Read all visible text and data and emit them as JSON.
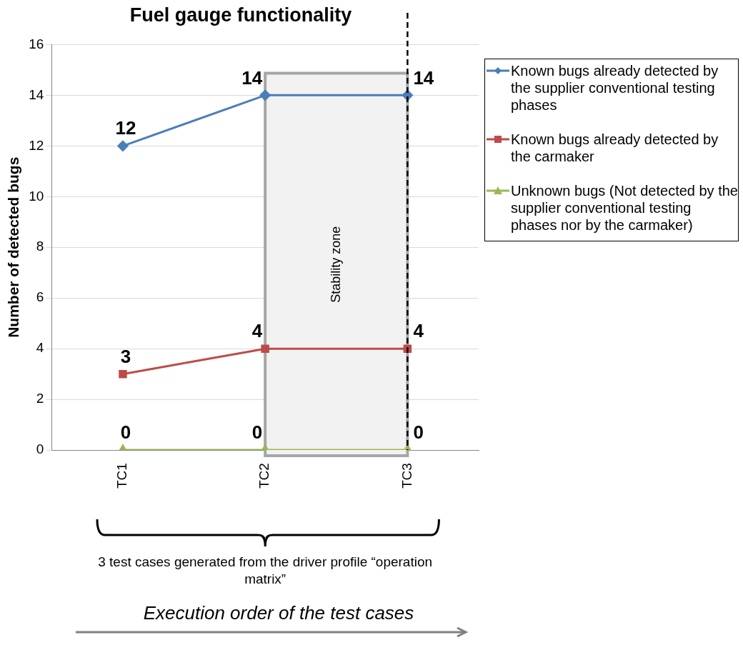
{
  "chart_data": {
    "type": "line",
    "title": "Fuel gauge functionality",
    "ylabel": "Number of detected bugs",
    "categories": [
      "TC1",
      "TC2",
      "TC3"
    ],
    "series": [
      {
        "name": "Known bugs already detected by the supplier conventional testing phases",
        "color": "#4a7ebb",
        "marker": "diamond",
        "values": [
          12,
          14,
          14
        ]
      },
      {
        "name": "Known bugs already detected by the carmaker",
        "color": "#be4b48",
        "marker": "square",
        "values": [
          3,
          4,
          4
        ]
      },
      {
        "name": "Unknown bugs (Not detected by the supplier conventional testing phases nor by the carmaker)",
        "color": "#98b954",
        "marker": "triangle",
        "values": [
          0,
          0,
          0
        ]
      }
    ],
    "ylim": [
      0,
      16
    ],
    "yticks": [
      0,
      2,
      4,
      6,
      8,
      10,
      12,
      14,
      16
    ],
    "grid": "y",
    "legend": "right",
    "data_labels": true,
    "line_style": "solid",
    "bands": [
      {
        "axis": "x",
        "from": "TC2",
        "to": "TC3",
        "label": "Stability zone",
        "color": "#f2f2f2"
      }
    ],
    "ref_lines": [
      {
        "axis": "x",
        "value": "TC3",
        "color": "#000000",
        "line_style": "dashed"
      }
    ],
    "annotations": [
      "3 test cases generated from the driver profile “operation matrix”",
      "Execution order of the test cases"
    ]
  }
}
